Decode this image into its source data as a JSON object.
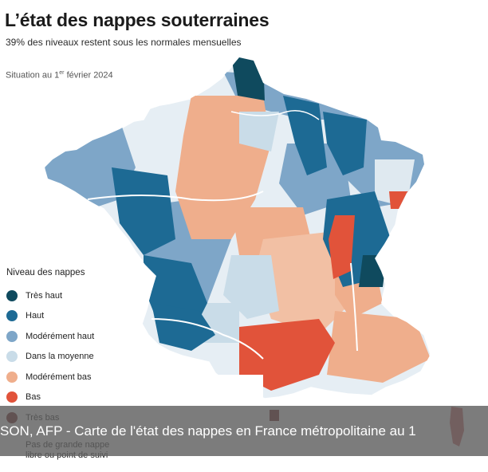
{
  "title": "L’état des nappes souterraines",
  "subtitle": "39% des niveaux restent sous les normales mensuelles",
  "situation": {
    "prefix": "Situation au 1",
    "sup": "er",
    "suffix": " février 2024"
  },
  "legend": {
    "title": "Niveau des nappes",
    "items": [
      {
        "label": "Très haut",
        "color": "#0f4a5e"
      },
      {
        "label": "Haut",
        "color": "#1d6a94"
      },
      {
        "label": "Modérément haut",
        "color": "#7ea6c8"
      },
      {
        "label": "Dans la moyenne",
        "color": "#c9dce8"
      },
      {
        "label": "Modérément bas",
        "color": "#efae8c"
      },
      {
        "label": "Bas",
        "color": "#e1533a"
      },
      {
        "label": "Très bas",
        "color": "#6b1a18"
      }
    ],
    "no_data_label": "Pas de grande nappe libre ou point de suivi"
  },
  "caption": "SON, AFP - Carte de l'état des nappes en France métropolitaine au 1"
}
